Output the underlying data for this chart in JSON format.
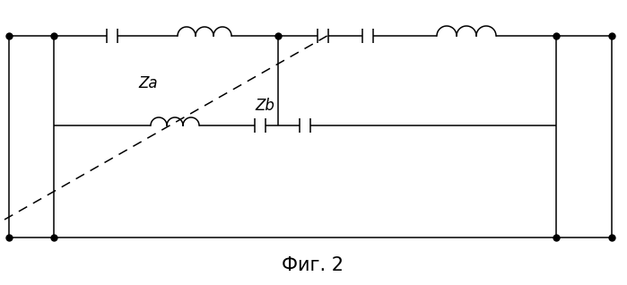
{
  "title": "Фиг. 2",
  "title_fontsize": 15,
  "bg_color": "#ffffff",
  "line_color": "#000000",
  "line_width": 1.1,
  "dot_size": 5,
  "Za_label": "Za",
  "Zb_label": "Zb",
  "label_fontsize": 12
}
